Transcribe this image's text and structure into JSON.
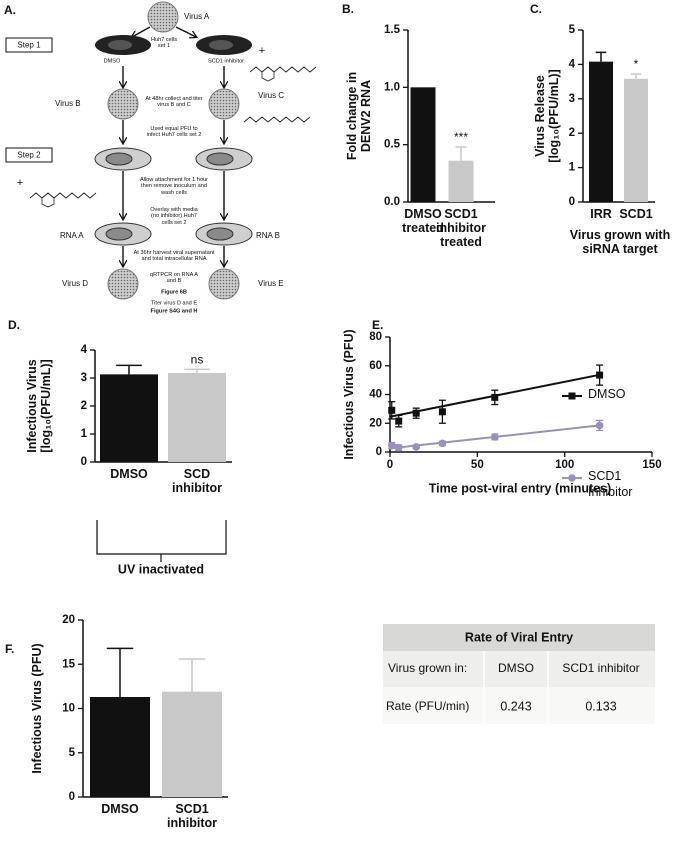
{
  "diagram": {
    "panel": "A.",
    "steps": [
      "Step 1",
      "Step 2"
    ],
    "viruses": [
      "Virus A",
      "Virus B",
      "Virus C",
      "Virus D",
      "Virus E"
    ],
    "conditions": [
      "DMSO",
      "SCD1 inhibitor"
    ],
    "cells_set_1": "Huh7 cells set 1",
    "plus_signs": [
      "+",
      "+"
    ],
    "rna": [
      "RNA A",
      "RNA B"
    ],
    "instructions": [
      "At 48hr collect and titer virus B and C",
      "Used equal PFU to infect Huh7 cells set 2",
      "Allow attachment for 1 hour then remove inoculum and wash cells",
      "Overlay with media (no inhibitor) Huh7 cells set 2",
      "At 36hr harvest viral supernatant and total intracellular RNA",
      "qRTPCR on RNA A and B",
      "Titer virus D and E"
    ],
    "figure_refs": [
      "Figure 6B",
      "Figure S4G and H"
    ]
  },
  "chart_data": [
    {
      "type": "bar",
      "panel": "B.",
      "ylabel": "Fold change in\nDENV2 RNA",
      "categories": [
        "DMSO\ntreated",
        "SCD1\ninhibitor\ntreated"
      ],
      "values": [
        1.0,
        0.36
      ],
      "errors": [
        null,
        0.12
      ],
      "annotations": [
        null,
        "***"
      ],
      "colors": [
        "#111111",
        "#c8c8c8"
      ],
      "ylim": [
        0,
        1.5
      ],
      "yticks": [
        {
          "value": 0,
          "label": "0.0"
        },
        0.5,
        {
          "value": 1,
          "label": "1.0"
        },
        1.5
      ]
    },
    {
      "type": "bar",
      "panel": "C.",
      "ylabel": "Virus Release\n[log₁₀(PFU/mL)]",
      "xlabel": "Virus grown with\nsiRNA target",
      "categories": [
        "IRR",
        "SCD1"
      ],
      "values": [
        4.08,
        3.58
      ],
      "errors": [
        0.27,
        0.14
      ],
      "annotations": [
        null,
        "*"
      ],
      "colors": [
        "#111111",
        "#c8c8c8"
      ],
      "ylim": [
        0,
        5
      ],
      "yticks": [
        0,
        1,
        2,
        3,
        4,
        5
      ]
    },
    {
      "type": "bar",
      "panel": "D.",
      "ylabel": "Infectious Virus\n[log₁₀(PFU/mL)]",
      "bracket_label": "UV inactivated",
      "categories": [
        "DMSO",
        "SCD\ninhibitor"
      ],
      "values": [
        3.13,
        3.18
      ],
      "errors": [
        0.32,
        0.13
      ],
      "annotations": [
        null,
        "ns"
      ],
      "colors": [
        "#111111",
        "#c8c8c8"
      ],
      "ylim": [
        0,
        4
      ],
      "yticks": [
        0,
        1,
        2,
        3,
        4
      ]
    },
    {
      "type": "scatter",
      "panel": "E.",
      "ylabel": "Infectious Virus (PFU)",
      "xlabel": "Time post-viral entry (minutes)",
      "xlim": [
        0,
        150
      ],
      "xticks": [
        0,
        50,
        100,
        150
      ],
      "ylim": [
        0,
        80
      ],
      "yticks": [
        0,
        20,
        40,
        60,
        80
      ],
      "legend": "right",
      "series": [
        {
          "name": "DMSO",
          "color": "#111111",
          "marker": "square",
          "x": [
            1,
            5,
            15,
            30,
            60,
            120
          ],
          "values": [
            29,
            21.5,
            27,
            28,
            38,
            53.5
          ],
          "errors": [
            6,
            4,
            3.5,
            8,
            5,
            7
          ],
          "fit_x": [
            0,
            120
          ],
          "fit_y": [
            24.5,
            53.7
          ]
        },
        {
          "name": "SCD1\nInhibitor",
          "color": "#9b8fbb",
          "marker": "circle",
          "x": [
            1,
            5,
            15,
            30,
            60,
            120
          ],
          "values": [
            4.5,
            3,
            3.5,
            6,
            10.5,
            18.5
          ],
          "errors": [
            2,
            2,
            1,
            1.5,
            2,
            3.5
          ],
          "fit_x": [
            0,
            120
          ],
          "fit_y": [
            2.5,
            18.5
          ]
        }
      ]
    },
    {
      "type": "bar",
      "panel": "F.",
      "ylabel": "Infectious Virus (PFU)",
      "categories": [
        "DMSO",
        "SCD1\ninhibitor"
      ],
      "values": [
        11.3,
        11.9
      ],
      "errors": [
        5.5,
        3.7
      ],
      "annotations": [
        null,
        null
      ],
      "colors": [
        "#111111",
        "#c8c8c8"
      ],
      "ylim": [
        0,
        20
      ],
      "yticks": [
        0,
        5,
        10,
        15,
        20
      ]
    }
  ],
  "table": {
    "title": "Rate of Viral Entry",
    "rows": [
      [
        "Virus grown in:",
        "DMSO",
        "SCD1 inhibitor"
      ],
      [
        "Rate (PFU/min)",
        "0.243",
        "0.133"
      ]
    ]
  }
}
